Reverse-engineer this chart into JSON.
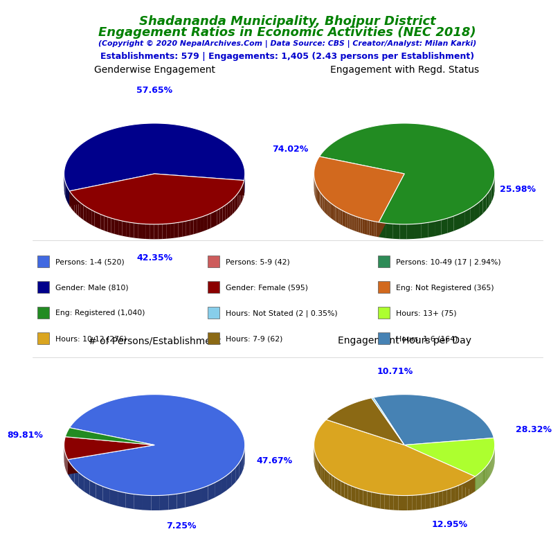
{
  "title_line1": "Shadananda Municipality, Bhojpur District",
  "title_line2": "Engagement Ratios in Economic Activities (NEC 2018)",
  "subtitle": "(Copyright © 2020 NepalArchives.Com | Data Source: CBS | Creator/Analyst: Milan Karki)",
  "stats_line": "Establishments: 579 | Engagements: 1,405 (2.43 persons per Establishment)",
  "title_color": "#008000",
  "subtitle_color": "#0000CD",
  "stats_color": "#0000CD",
  "pie1_title": "Genderwise Engagement",
  "pie1_values": [
    57.65,
    42.35
  ],
  "pie1_colors": [
    "#00008B",
    "#8B0000"
  ],
  "pie1_labels": [
    "57.65%",
    "42.35%"
  ],
  "pie2_title": "Engagement with Regd. Status",
  "pie2_values": [
    74.02,
    25.98
  ],
  "pie2_colors": [
    "#228B22",
    "#D2691E"
  ],
  "pie2_labels": [
    "74.02%",
    "25.98%"
  ],
  "pie3_title": "# of Persons/Establishment",
  "pie3_values": [
    89.81,
    7.25,
    2.94
  ],
  "pie3_colors": [
    "#4169E1",
    "#8B0000",
    "#228B22"
  ],
  "pie3_labels": [
    "89.81%",
    "7.25%",
    ""
  ],
  "pie4_title": "Engagement Hours per Day",
  "pie4_values": [
    28.32,
    12.95,
    47.67,
    10.71,
    0.35
  ],
  "pie4_colors": [
    "#4682B4",
    "#ADFF2F",
    "#DAA520",
    "#8B6914",
    "#87CEEB"
  ],
  "pie4_labels": [
    "28.32%",
    "12.95%",
    "47.67%",
    "10.71%",
    ""
  ],
  "legend_items": [
    {
      "label": "Persons: 1-4 (520)",
      "color": "#4169E1"
    },
    {
      "label": "Persons: 5-9 (42)",
      "color": "#CD5C5C"
    },
    {
      "label": "Persons: 10-49 (17 | 2.94%)",
      "color": "#2E8B57"
    },
    {
      "label": "Gender: Male (810)",
      "color": "#00008B"
    },
    {
      "label": "Gender: Female (595)",
      "color": "#8B0000"
    },
    {
      "label": "Eng: Not Registered (365)",
      "color": "#D2691E"
    },
    {
      "label": "Eng: Registered (1,040)",
      "color": "#228B22"
    },
    {
      "label": "Hours: Not Stated (2 | 0.35%)",
      "color": "#87CEEB"
    },
    {
      "label": "Hours: 13+ (75)",
      "color": "#ADFF2F"
    },
    {
      "label": "Hours: 10-12 (276)",
      "color": "#DAA520"
    },
    {
      "label": "Hours: 7-9 (62)",
      "color": "#8B6914"
    },
    {
      "label": "Hours: 1-6 (164)",
      "color": "#4682B4"
    }
  ]
}
